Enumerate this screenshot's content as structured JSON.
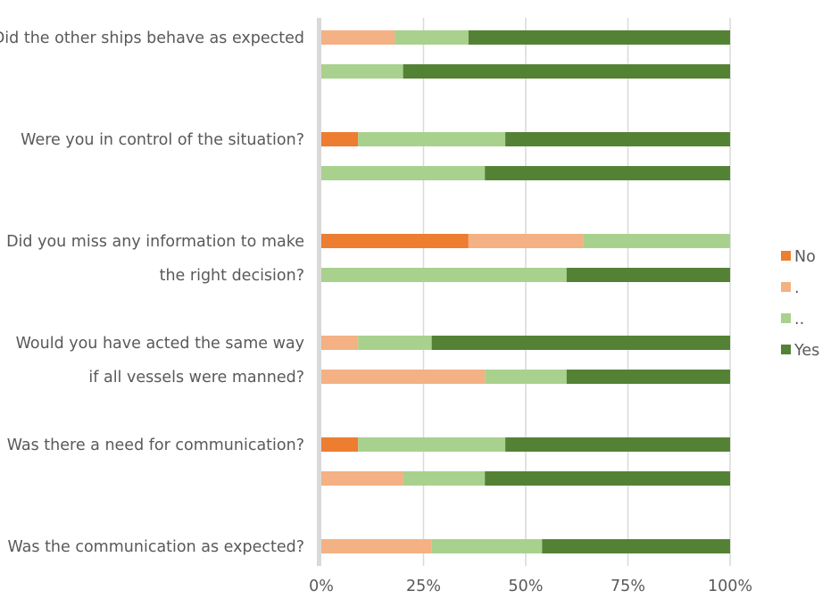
{
  "chart_data": {
    "type": "bar",
    "orientation": "horizontal",
    "stacking": "percent",
    "rows": [
      {
        "label": "Did the other ships behave as expected",
        "values": [
          0,
          18,
          18,
          64
        ]
      },
      {
        "label": "",
        "values": [
          0,
          0,
          20,
          80
        ]
      },
      {
        "label": "Were you in control of the situation?",
        "values": [
          9,
          0,
          36,
          55
        ]
      },
      {
        "label": "",
        "values": [
          0,
          0,
          40,
          60
        ]
      },
      {
        "label": "Did you miss any information to make",
        "values": [
          36,
          28,
          36,
          0
        ]
      },
      {
        "label": "the right decision?",
        "values": [
          0,
          0,
          60,
          40
        ]
      },
      {
        "label": "Would you have acted the same way",
        "values": [
          0,
          9,
          18,
          73
        ]
      },
      {
        "label": "if all vessels were manned?",
        "values": [
          0,
          40,
          20,
          40
        ]
      },
      {
        "label": "Was there a need for communication?",
        "values": [
          9,
          0,
          36,
          55
        ]
      },
      {
        "label": "",
        "values": [
          0,
          20,
          20,
          60
        ]
      },
      {
        "label": "Was the communication as expected?",
        "values": [
          0,
          27,
          27,
          46
        ]
      }
    ],
    "series": [
      {
        "name": "No",
        "color": "#ed7d31"
      },
      {
        "name": ".",
        "color": "#f4b183"
      },
      {
        "name": "..",
        "color": "#a9d18e"
      },
      {
        "name": "Yes",
        "color": "#548235"
      }
    ],
    "x_ticks": [
      "0%",
      "25%",
      "50%",
      "75%",
      "100%"
    ],
    "xlim": [
      0,
      100
    ],
    "grid": true,
    "legend_position": "right"
  }
}
